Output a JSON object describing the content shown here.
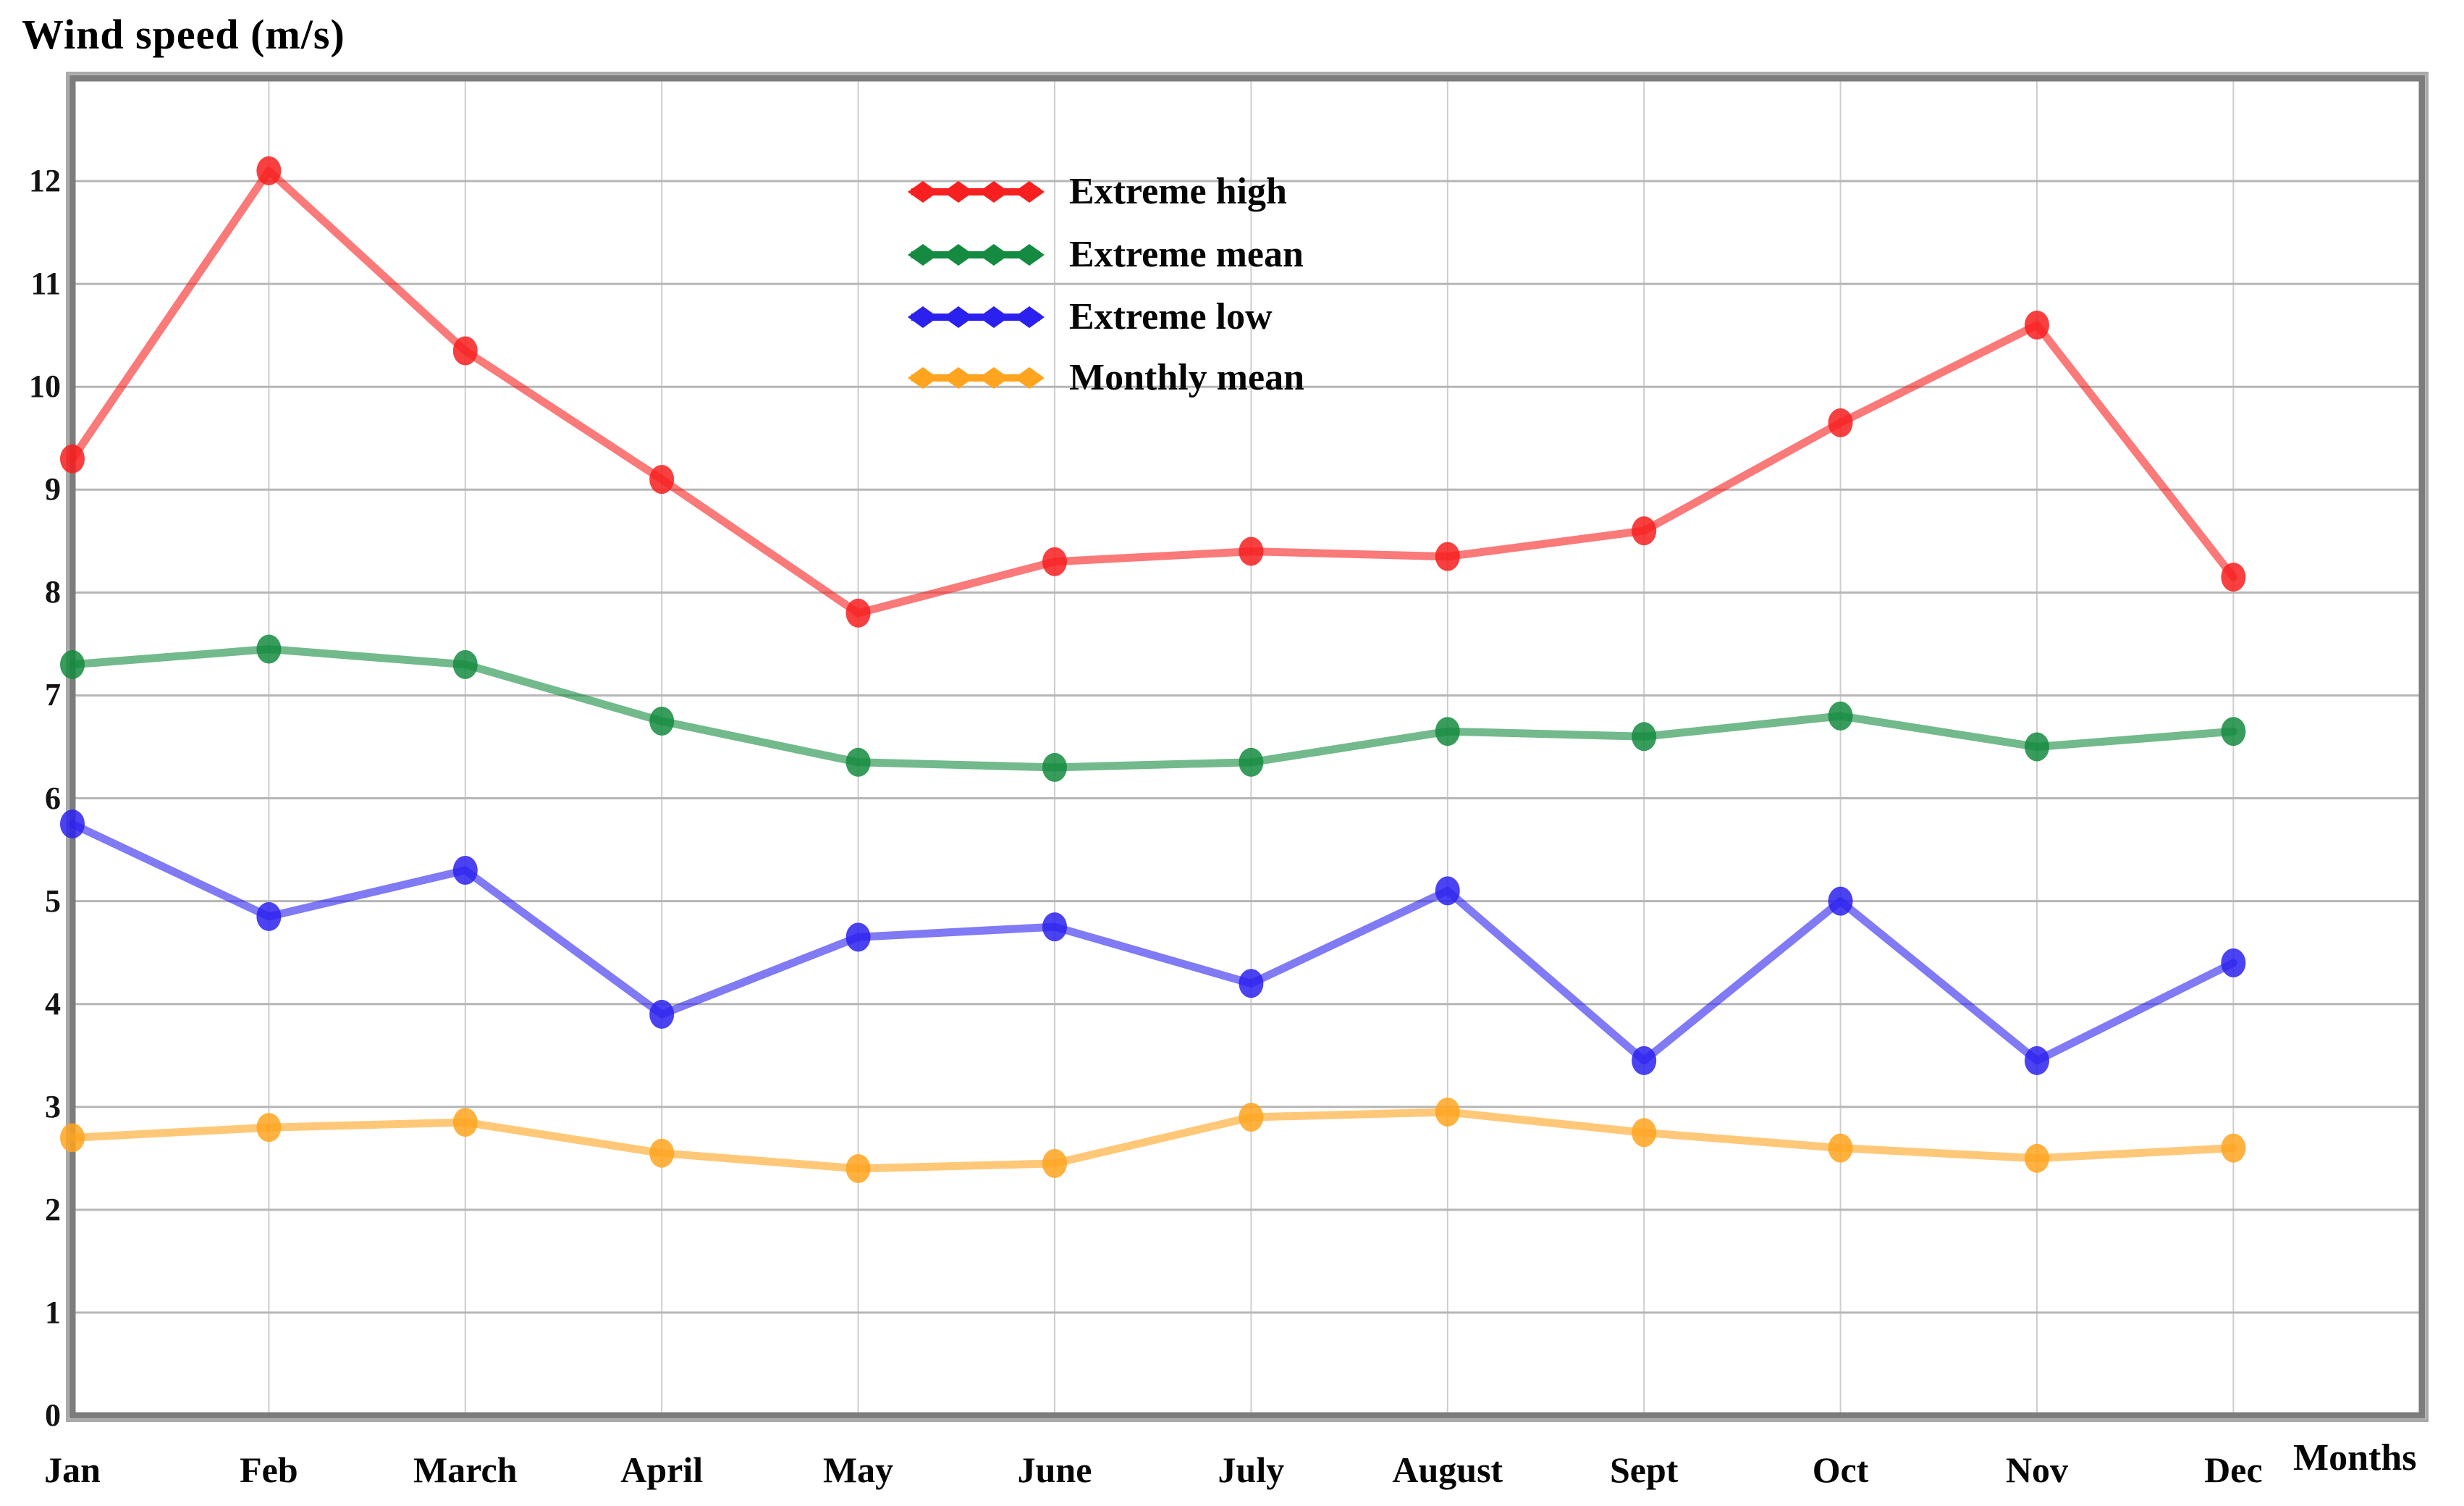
{
  "title": "Wind speed (m/s)",
  "x_axis_label": "Months",
  "frame_color": "#7c7c7c",
  "grid_color_h": "#b6b6b6",
  "grid_color_v": "#cdcdcd",
  "chart_data": {
    "type": "line",
    "title": "Wind speed (m/s)",
    "xlabel": "Months",
    "ylabel": "Wind speed (m/s)",
    "categories": [
      "Jan",
      "Feb",
      "March",
      "April",
      "May",
      "June",
      "July",
      "August",
      "Sept",
      "Oct",
      "Nov",
      "Dec"
    ],
    "y_tick_labels": [
      "0",
      "1",
      "2",
      "3",
      "4",
      "5",
      "6",
      "7",
      "8",
      "9",
      "10",
      "11",
      "12"
    ],
    "ylim": [
      0,
      13
    ],
    "grid": true,
    "legend_position": "inside-top-center",
    "series": [
      {
        "name": "Extreme high",
        "color": "#f71f1f",
        "values": [
          9.3,
          12.1,
          10.35,
          9.1,
          7.8,
          8.3,
          8.4,
          8.35,
          8.6,
          9.65,
          10.6,
          8.15
        ]
      },
      {
        "name": "Extreme mean",
        "color": "#148b40",
        "values": [
          7.3,
          7.45,
          7.3,
          6.75,
          6.35,
          6.3,
          6.35,
          6.65,
          6.6,
          6.8,
          6.5,
          6.65
        ]
      },
      {
        "name": "Extreme low",
        "color": "#2b21ee",
        "values": [
          5.75,
          4.85,
          5.3,
          3.9,
          4.65,
          4.75,
          4.2,
          5.1,
          3.45,
          5.0,
          3.45,
          4.4
        ]
      },
      {
        "name": "Monthly mean",
        "color": "#ffa41e",
        "values": [
          2.7,
          2.8,
          2.85,
          2.55,
          2.4,
          2.45,
          2.9,
          2.95,
          2.75,
          2.6,
          2.5,
          2.6
        ]
      }
    ]
  }
}
